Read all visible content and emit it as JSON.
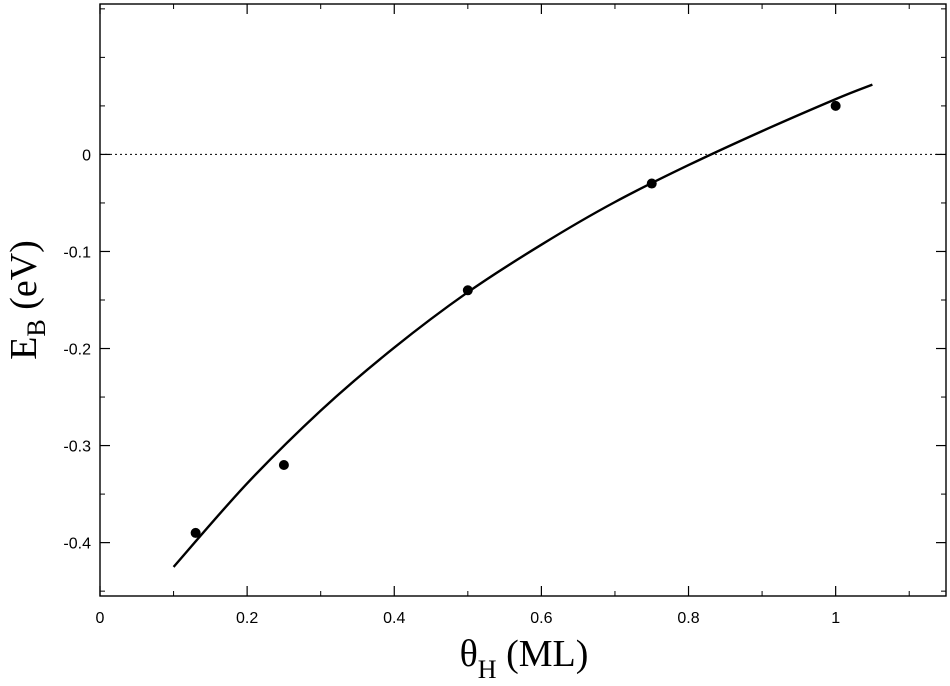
{
  "chart_data": {
    "type": "scatter",
    "title": "",
    "xlabel": {
      "main": "θ",
      "sub": "H",
      "unit": "(ML)"
    },
    "ylabel": {
      "main": "E",
      "sub": "B",
      "unit": "(eV)"
    },
    "xlim": [
      0,
      1.15
    ],
    "ylim": [
      -0.455,
      0.155
    ],
    "xticks": [
      0,
      0.2,
      0.4,
      0.6,
      0.8,
      1
    ],
    "xtick_labels": [
      "0",
      "0.2",
      "0.4",
      "0.6",
      "0.8",
      "1"
    ],
    "yticks": [
      -0.4,
      -0.3,
      -0.2,
      -0.1,
      0
    ],
    "ytick_labels": [
      "-0.4",
      "-0.3",
      "-0.2",
      "-0.1",
      "0"
    ],
    "grid": false,
    "legend": "none",
    "reference_line": {
      "y": 0,
      "style": "dotted"
    },
    "series": [
      {
        "kind": "points",
        "x": [
          0.13,
          0.25,
          0.5,
          0.75,
          1.0
        ],
        "y": [
          -0.39,
          -0.32,
          -0.14,
          -0.03,
          0.05
        ]
      },
      {
        "kind": "fit-curve",
        "x": [
          0.1,
          0.2,
          0.3,
          0.4,
          0.5,
          0.6,
          0.7,
          0.8,
          0.9,
          1.0,
          1.05
        ],
        "y": [
          -0.425,
          -0.339,
          -0.264,
          -0.199,
          -0.142,
          -0.093,
          -0.049,
          -0.011,
          0.024,
          0.057,
          0.072
        ]
      }
    ]
  }
}
